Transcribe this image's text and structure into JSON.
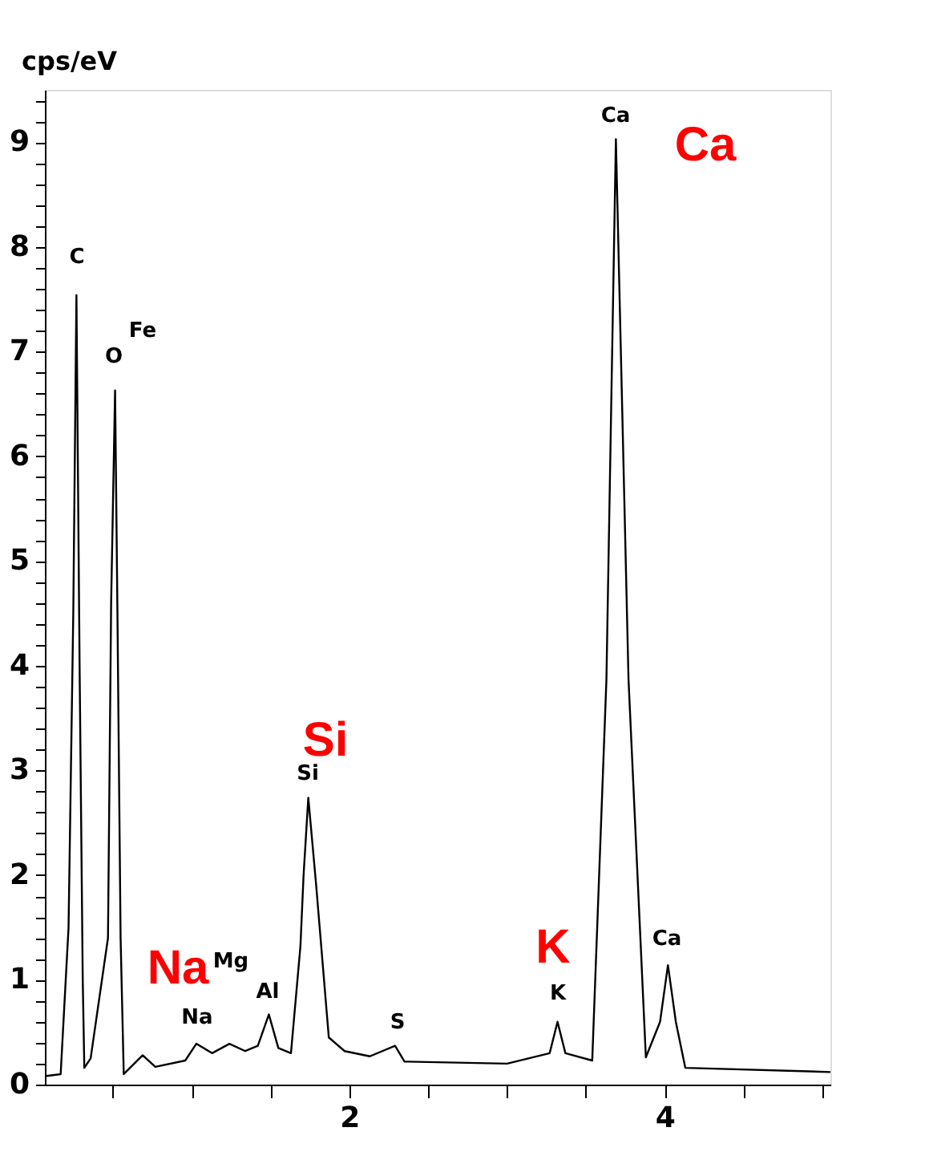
{
  "chart_data": {
    "type": "line",
    "ylabel": "cps/eV",
    "x": [
      0.07,
      0.17,
      0.22,
      0.25,
      0.27,
      0.29,
      0.31,
      0.32,
      0.36,
      0.47,
      0.49,
      0.515,
      0.53,
      0.55,
      0.57,
      0.69,
      0.77,
      0.96,
      1.03,
      1.13,
      1.24,
      1.34,
      1.42,
      1.49,
      1.55,
      1.63,
      1.69,
      1.71,
      1.74,
      1.79,
      1.87,
      1.97,
      2.13,
      2.29,
      2.35,
      3.0,
      3.27,
      3.32,
      3.37,
      3.54,
      3.63,
      3.69,
      3.77,
      3.88,
      3.97,
      4.02,
      4.07,
      4.13,
      5.05
    ],
    "series": [
      {
        "color": "#000000",
        "values": [
          0.08,
          0.1,
          1.5,
          4.5,
          7.54,
          4.0,
          1.0,
          0.16,
          0.25,
          1.4,
          4.6,
          6.63,
          4.5,
          1.4,
          0.1,
          0.28,
          0.17,
          0.23,
          0.39,
          0.3,
          0.39,
          0.32,
          0.37,
          0.67,
          0.35,
          0.3,
          1.32,
          2.0,
          2.74,
          1.9,
          0.45,
          0.32,
          0.27,
          0.37,
          0.22,
          0.2,
          0.3,
          0.6,
          0.3,
          0.23,
          3.87,
          9.03,
          3.87,
          0.26,
          0.6,
          1.14,
          0.6,
          0.16,
          0.12
        ]
      }
    ],
    "xlim": [
      0.07,
      5.05
    ],
    "ylim": [
      0,
      9.5
    ],
    "xticks": [
      {
        "value": 0.5,
        "label": null
      },
      {
        "value": 1,
        "label": null
      },
      {
        "value": 1.5,
        "label": null
      },
      2,
      {
        "value": 2.5,
        "label": null
      },
      {
        "value": 3,
        "label": null
      },
      {
        "value": 3.5,
        "label": null
      },
      4,
      {
        "value": 4.5,
        "label": null
      },
      {
        "value": 5,
        "label": null
      }
    ],
    "yticks": [
      0,
      {
        "value": 0.2,
        "label": null
      },
      {
        "value": 0.4,
        "label": null
      },
      {
        "value": 0.6,
        "label": null
      },
      {
        "value": 0.8,
        "label": null
      },
      1,
      {
        "value": 1.2,
        "label": null
      },
      {
        "value": 1.4,
        "label": null
      },
      {
        "value": 1.6,
        "label": null
      },
      {
        "value": 1.8,
        "label": null
      },
      2,
      {
        "value": 2.2,
        "label": null
      },
      {
        "value": 2.4,
        "label": null
      },
      {
        "value": 2.6,
        "label": null
      },
      {
        "value": 2.8,
        "label": null
      },
      3,
      {
        "value": 3.2,
        "label": null
      },
      {
        "value": 3.4,
        "label": null
      },
      {
        "value": 3.6,
        "label": null
      },
      {
        "value": 3.8,
        "label": null
      },
      4,
      {
        "value": 4.2,
        "label": null
      },
      {
        "value": 4.4,
        "label": null
      },
      {
        "value": 4.6,
        "label": null
      },
      {
        "value": 4.8,
        "label": null
      },
      5,
      {
        "value": 5.2,
        "label": null
      },
      {
        "value": 5.4,
        "label": null
      },
      {
        "value": 5.6,
        "label": null
      },
      {
        "value": 5.8,
        "label": null
      },
      6,
      {
        "value": 6.2,
        "label": null
      },
      {
        "value": 6.4,
        "label": null
      },
      {
        "value": 6.6,
        "label": null
      },
      {
        "value": 6.8,
        "label": null
      },
      7,
      {
        "value": 7.2,
        "label": null
      },
      {
        "value": 7.4,
        "label": null
      },
      {
        "value": 7.6,
        "label": null
      },
      {
        "value": 7.8,
        "label": null
      },
      8,
      {
        "value": 8.2,
        "label": null
      },
      {
        "value": 8.4,
        "label": null
      },
      {
        "value": 8.6,
        "label": null
      },
      {
        "value": 8.8,
        "label": null
      },
      9,
      {
        "value": 9.2,
        "label": null
      },
      {
        "value": 9.4,
        "label": null
      }
    ],
    "grid": false,
    "marker": "none",
    "line_style": "solid",
    "annotations": [
      "C",
      "Fe",
      "O",
      "Na",
      "Mg",
      "Al",
      "Si",
      "S",
      "K",
      "Ca",
      "Ca",
      "Ca",
      "Si",
      "Na",
      "K"
    ]
  }
}
